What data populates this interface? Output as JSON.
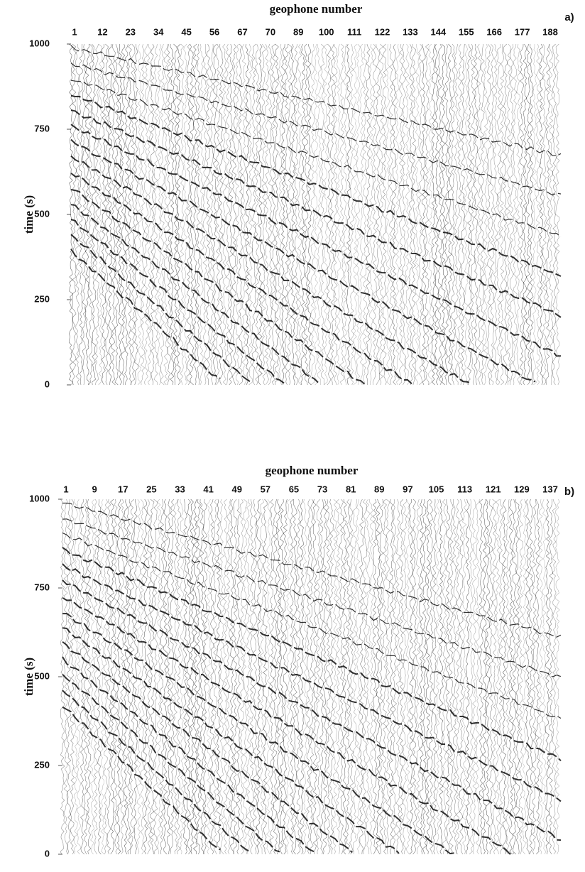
{
  "chart_data": [
    {
      "type": "wiggle",
      "x_label": "geophone number",
      "y_label": "time (s)",
      "panel_label": "a)",
      "categories": [
        1,
        12,
        23,
        34,
        45,
        56,
        67,
        70,
        89,
        100,
        111,
        122,
        133,
        144,
        155,
        166,
        177,
        188
      ],
      "ylim": [
        0,
        1000
      ],
      "yticks": [
        0,
        250,
        500,
        750,
        1000
      ]
    },
    {
      "type": "wiggle",
      "x_label": "geophone number",
      "y_label": "time (s)",
      "panel_label": "b)",
      "categories": [
        1,
        9,
        17,
        25,
        33,
        41,
        49,
        57,
        65,
        73,
        81,
        89,
        97,
        105,
        113,
        121,
        129,
        137
      ],
      "ylim": [
        0,
        1000
      ],
      "yticks": [
        0,
        250,
        500,
        750,
        1000
      ]
    }
  ]
}
